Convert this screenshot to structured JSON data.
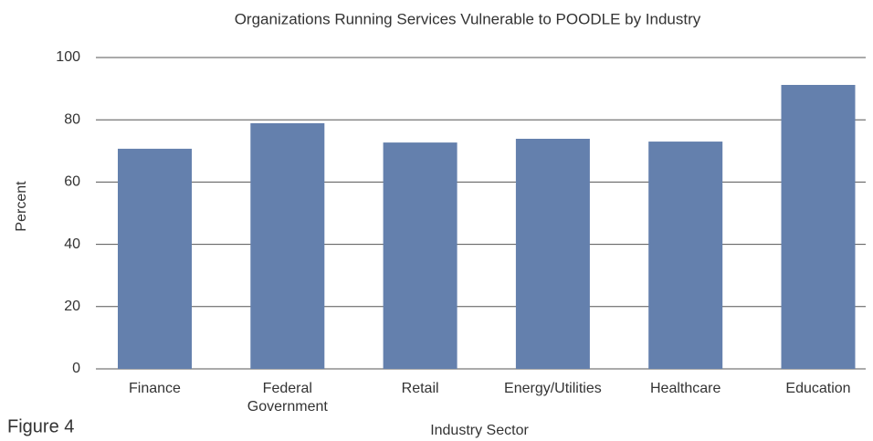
{
  "figure_label": "Figure 4",
  "chart_data": {
    "type": "bar",
    "title": "Organizations Running Services Vulnerable to POODLE by Industry",
    "x_label": "Industry Sector",
    "y_label": "Percent",
    "categories": [
      "Finance",
      "Federal Government",
      "Retail",
      "Energy/Utilities",
      "Healthcare",
      "Education"
    ],
    "values": [
      70.7,
      78.9,
      72.7,
      73.9,
      73.0,
      91.2
    ],
    "color": "#6480ad",
    "ylim": [
      0,
      100
    ],
    "yticks": [
      0,
      20,
      40,
      60,
      80,
      100
    ],
    "grid": true
  }
}
